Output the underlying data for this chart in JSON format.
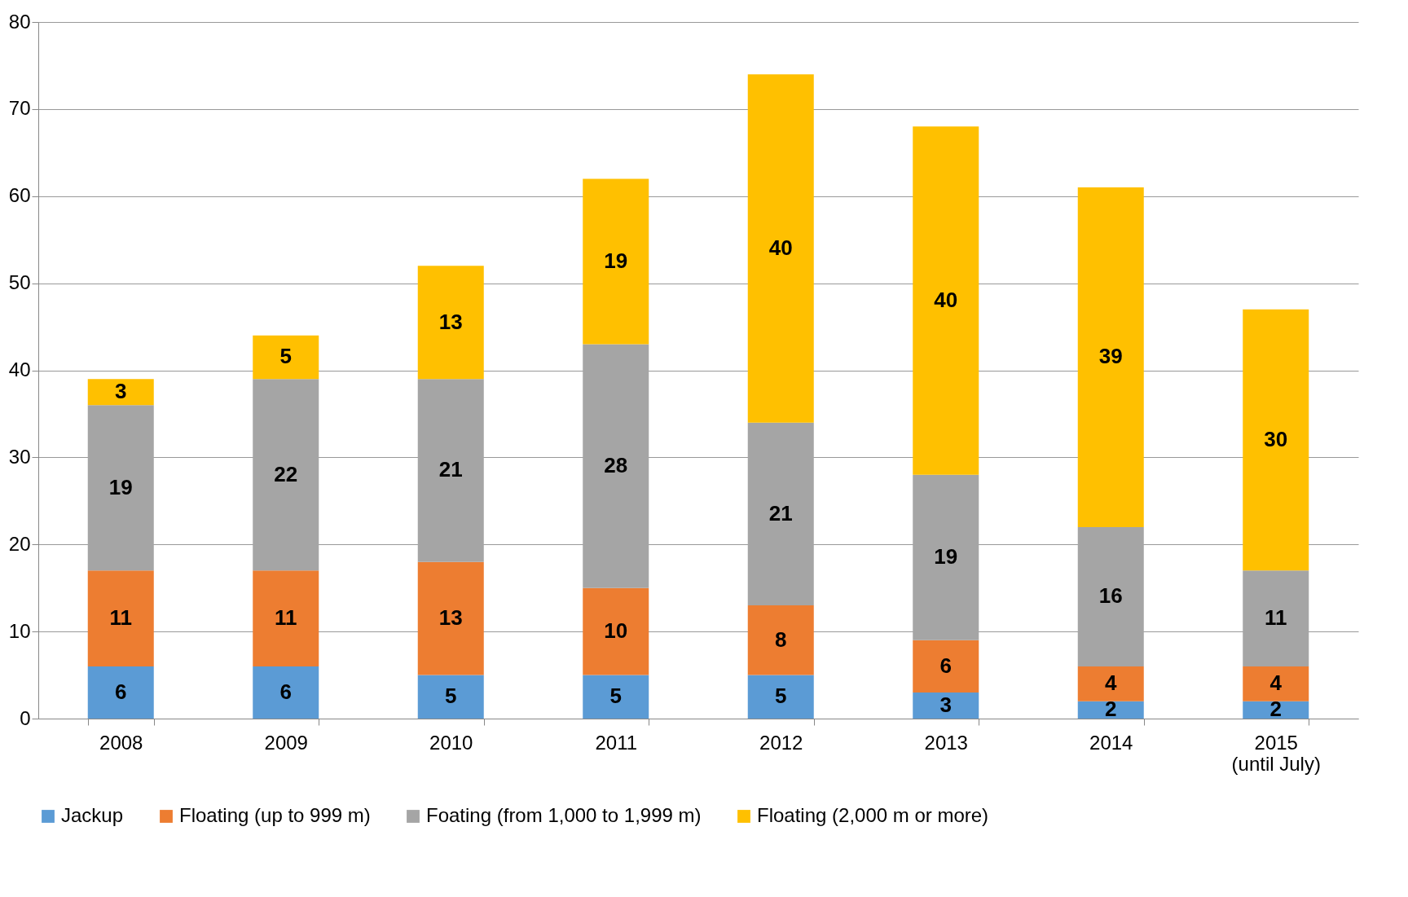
{
  "chart_data": {
    "type": "bar",
    "stacked": true,
    "categories": [
      "2008",
      "2009",
      "2010",
      "2011",
      "2012",
      "2013",
      "2014",
      "2015\n(until July)"
    ],
    "series": [
      {
        "name": "Jackup",
        "color": "#5b9bd5",
        "values": [
          6,
          6,
          5,
          5,
          5,
          3,
          2,
          2
        ]
      },
      {
        "name": "Floating (up to 999 m)",
        "color": "#ed7d31",
        "values": [
          11,
          11,
          13,
          10,
          8,
          6,
          4,
          4
        ]
      },
      {
        "name": "Foating (from 1,000 to 1,999 m)",
        "color": "#a5a5a5",
        "values": [
          19,
          22,
          21,
          28,
          21,
          19,
          16,
          11
        ]
      },
      {
        "name": "Floating (2,000 m or more)",
        "color": "#ffc000",
        "values": [
          3,
          5,
          13,
          19,
          40,
          40,
          39,
          30
        ]
      }
    ],
    "ylim": [
      0,
      80
    ],
    "yticks": [
      0,
      10,
      20,
      30,
      40,
      50,
      60,
      70,
      80
    ],
    "grid": "y",
    "legend": "bottom",
    "data_labels": true
  }
}
